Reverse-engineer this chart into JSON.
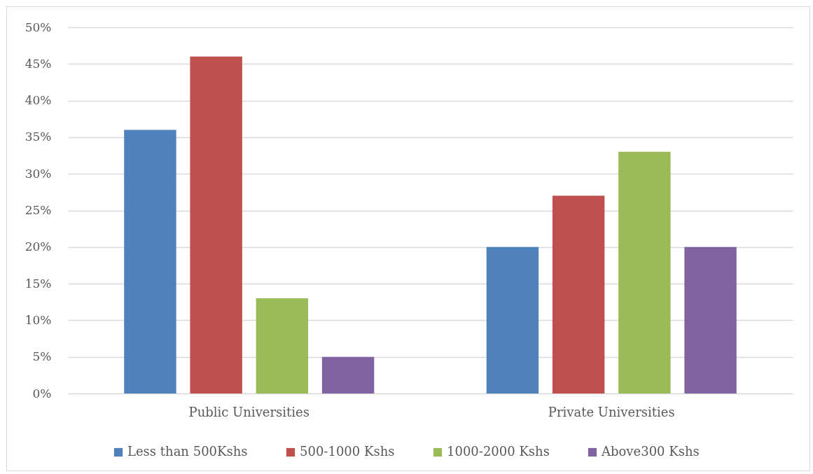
{
  "chart_data": {
    "type": "bar",
    "categories": [
      "Public Universities",
      "Private Universities"
    ],
    "series": [
      {
        "name": "Less than 500Kshs",
        "color": "#4f81bd",
        "values": [
          36,
          20
        ]
      },
      {
        "name": "500-1000 Kshs",
        "color": "#c0504d",
        "values": [
          46,
          27
        ]
      },
      {
        "name": "1000-2000 Kshs",
        "color": "#9bbb59",
        "values": [
          13,
          33
        ]
      },
      {
        "name": "Above300 Kshs",
        "color": "#8064a2",
        "values": [
          5,
          20
        ]
      }
    ],
    "ylim": [
      0,
      50
    ],
    "yticks": [
      {
        "value": 0,
        "label": "0%"
      },
      {
        "value": 5,
        "label": "5%"
      },
      {
        "value": 10,
        "label": "10%"
      },
      {
        "value": 15,
        "label": "15%"
      },
      {
        "value": 20,
        "label": "20%"
      },
      {
        "value": 25,
        "label": "25%"
      },
      {
        "value": 30,
        "label": "30%"
      },
      {
        "value": 35,
        "label": "35%"
      },
      {
        "value": 40,
        "label": "40%"
      },
      {
        "value": 45,
        "label": "45%"
      },
      {
        "value": 50,
        "label": "50%"
      }
    ],
    "grid": "y",
    "legend": "bottom"
  }
}
